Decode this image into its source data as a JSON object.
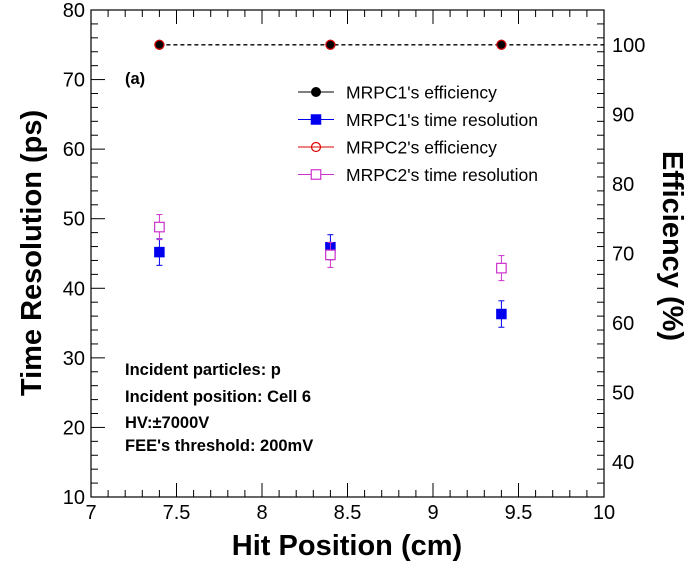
{
  "chart_data": {
    "type": "scatter",
    "panel_label": "(a)",
    "xlabel": "Hit Position (cm)",
    "ylabel_left": "Time Resolution (ps)",
    "ylabel_right": "Efficiency (%)",
    "xlim": [
      7,
      10
    ],
    "ylim_left": [
      10,
      80
    ],
    "ylim_right": [
      35,
      105
    ],
    "x_ticks": [
      7,
      7.5,
      8,
      8.5,
      9,
      9.5,
      10
    ],
    "x_tick_labels": [
      "7",
      "7.5",
      "8",
      "8.5",
      "9",
      "9.5",
      "10"
    ],
    "y_left_ticks": [
      10,
      20,
      30,
      40,
      50,
      60,
      70,
      80
    ],
    "y_left_tick_labels": [
      "10",
      "20",
      "30",
      "40",
      "50",
      "60",
      "70",
      "80"
    ],
    "y_right_ticks": [
      40,
      50,
      60,
      70,
      80,
      90,
      100
    ],
    "y_right_tick_labels": [
      "40",
      "50",
      "60",
      "70",
      "80",
      "90",
      "100"
    ],
    "legend_position": "top-right",
    "series": [
      {
        "name": "MRPC1's efficiency",
        "axis": "right",
        "marker": "filled-circle",
        "color": "#000000",
        "line": "dashed",
        "x": [
          7.4,
          8.4,
          9.4
        ],
        "y": [
          100,
          100,
          100
        ],
        "err": [
          0,
          0,
          0
        ]
      },
      {
        "name": "MRPC1's time resolution",
        "axis": "left",
        "marker": "filled-square",
        "color": "#0000ee",
        "x": [
          7.4,
          8.4,
          9.4
        ],
        "y": [
          45.2,
          45.9,
          36.3
        ],
        "err": [
          1.9,
          1.8,
          1.9
        ]
      },
      {
        "name": "MRPC2's efficiency",
        "axis": "right",
        "marker": "open-circle",
        "color": "#dd0000",
        "x": [
          7.4,
          8.4,
          9.4
        ],
        "y": [
          100,
          100,
          100
        ],
        "err": [
          0,
          0,
          0
        ]
      },
      {
        "name": "MRPC2's time resolution",
        "axis": "left",
        "marker": "open-square",
        "color": "#cc33cc",
        "x": [
          7.4,
          8.4,
          9.4
        ],
        "y": [
          48.8,
          44.8,
          42.9
        ],
        "err": [
          1.8,
          1.8,
          1.8
        ]
      }
    ],
    "annotations": [
      "Incident particles: p",
      "Incident position: Cell 6",
      "HV:±7000V",
      "FEE's threshold: 200mV"
    ]
  }
}
